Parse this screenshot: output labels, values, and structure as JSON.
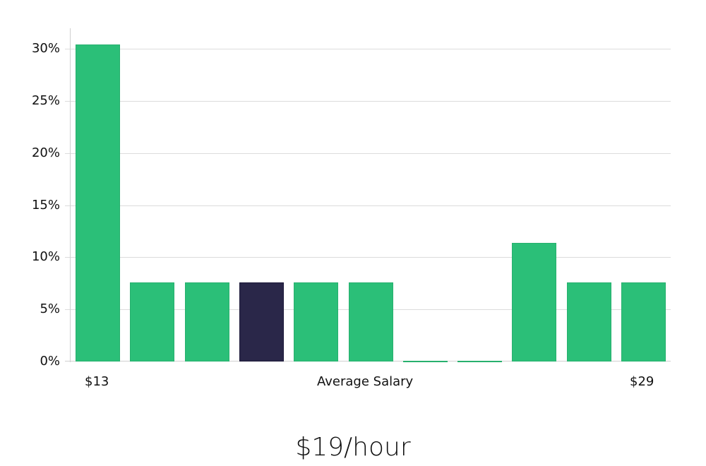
{
  "chart_data": {
    "type": "bar",
    "title": "$19/hour",
    "xlabel": "Average Salary",
    "ylabel": "",
    "ylim": [
      0,
      32
    ],
    "y_ticks": [
      "0%",
      "5%",
      "10%",
      "15%",
      "20%",
      "25%",
      "30%"
    ],
    "y_tick_values": [
      0,
      5,
      10,
      15,
      20,
      25,
      30
    ],
    "x_tick_labels": {
      "first": "$13",
      "last": "$29"
    },
    "categories": [
      "$13",
      "bin2",
      "bin3",
      "bin4",
      "bin5",
      "bin6",
      "bin7",
      "bin8",
      "bin9",
      "bin10",
      "$29"
    ],
    "values": [
      30.4,
      7.6,
      7.6,
      7.6,
      7.6,
      7.6,
      0.1,
      0.1,
      11.4,
      7.6,
      7.6
    ],
    "highlight_index": 3,
    "grid": true,
    "legend": null,
    "colors": {
      "bar": "#2bbf78",
      "highlight": "#2a2749",
      "grid": "#dcdcdc"
    }
  },
  "labels": {
    "x_first": "$13",
    "x_center": "Average Salary",
    "x_last": "$29",
    "title": "$19/hour"
  }
}
